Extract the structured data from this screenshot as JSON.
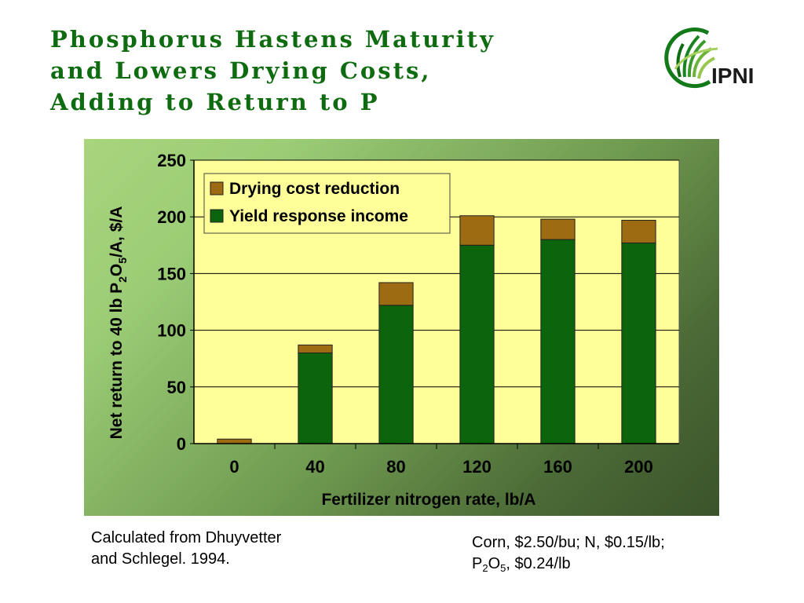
{
  "title": {
    "line1": "Phosphorus Hastens Maturity",
    "line2": "and Lowers Drying Costs,",
    "line3": "Adding to Return to P"
  },
  "logo": {
    "text": "IPNI",
    "icon": "ipni-grass-logo-icon"
  },
  "colors": {
    "title": "#0f6b10",
    "yield": "#0c640c",
    "drying": "#9c6b12",
    "plot_bg": "#ffff99"
  },
  "chart_data": {
    "type": "bar",
    "stacked": true,
    "categories": [
      "0",
      "40",
      "80",
      "120",
      "160",
      "200"
    ],
    "series": [
      {
        "name": "Yield response income",
        "color": "#0c640c",
        "values": [
          0,
          80,
          122,
          175,
          180,
          177
        ]
      },
      {
        "name": "Drying cost reduction",
        "color": "#9c6b12",
        "values": [
          4,
          7,
          20,
          26,
          18,
          20
        ]
      }
    ],
    "xlabel": "Fertilizer nitrogen rate, lb/A",
    "ylabel": {
      "pre": "Net return to 40 lb P",
      "sub1": "2",
      "mid": "O",
      "sub2": "5",
      "post": "/A, $/A"
    },
    "ylim": [
      0,
      250
    ],
    "yticks": [
      0,
      50,
      100,
      150,
      200,
      250
    ],
    "grid": true,
    "legend_position": "top-left",
    "legend_order": [
      1,
      0
    ]
  },
  "notes": {
    "source_line1": "Calculated from Dhuyvetter",
    "source_line2": "and Schlegel. 1994.",
    "price_line1": "Corn, $2.50/bu; N, $0.15/lb;",
    "price_p": "P",
    "price_sub1": "2",
    "price_o": "O",
    "price_sub2": "5",
    "price_rest": ", $0.24/lb"
  }
}
